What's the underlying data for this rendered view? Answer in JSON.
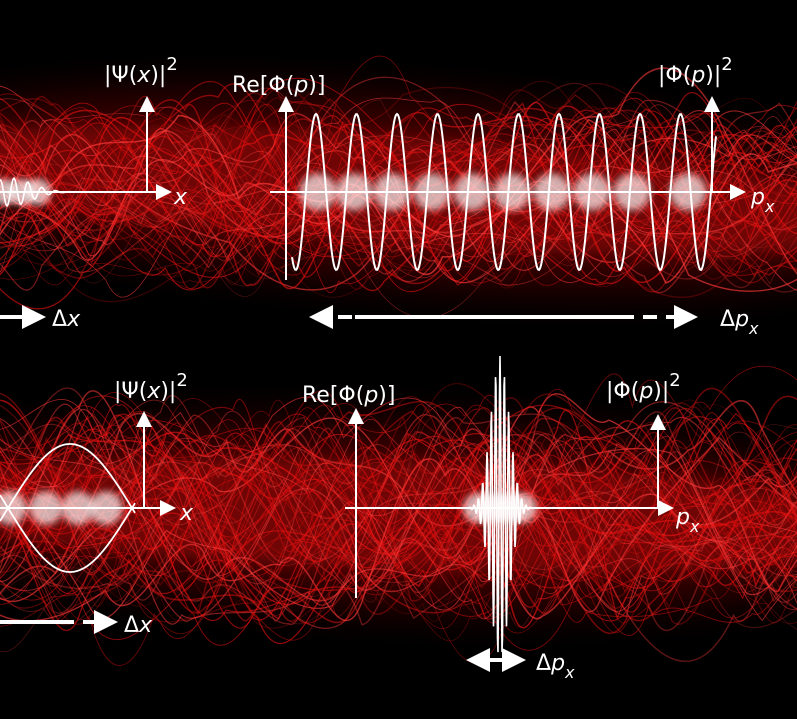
{
  "top": {
    "psi_label": {
      "prefix": "|Ψ(",
      "var": "x",
      "suffix": ")|",
      "sup": "2"
    },
    "re_label": {
      "prefix": "Re[Φ(",
      "var": "p",
      "suffix": ")]"
    },
    "phi_label": {
      "prefix": "|Φ(",
      "var": "p",
      "suffix": ")|",
      "sup": "2"
    },
    "x_axis_label": "x",
    "p_axis_label": {
      "var": "p",
      "sub": "x"
    },
    "delta_x": {
      "sym": "Δ",
      "var": "x"
    },
    "delta_p": {
      "sym": "Δ",
      "var": "p",
      "sub": "x"
    }
  },
  "bottom": {
    "psi_label": {
      "prefix": "|Ψ(",
      "var": "x",
      "suffix": ")|",
      "sup": "2"
    },
    "re_label": {
      "prefix": "Re[Φ(",
      "var": "p",
      "suffix": ")]"
    },
    "phi_label": {
      "prefix": "|Φ(",
      "var": "p",
      "suffix": ")|",
      "sup": "2"
    },
    "x_axis_label": "x",
    "p_axis_label": {
      "var": "p",
      "sub": "x"
    },
    "delta_x": {
      "sym": "Δ",
      "var": "x"
    },
    "delta_p": {
      "sym": "Δ",
      "var": "p",
      "sub": "x"
    }
  },
  "colors": {
    "background": "#000000",
    "smoke": "#e01010",
    "ink": "#ffffff"
  }
}
